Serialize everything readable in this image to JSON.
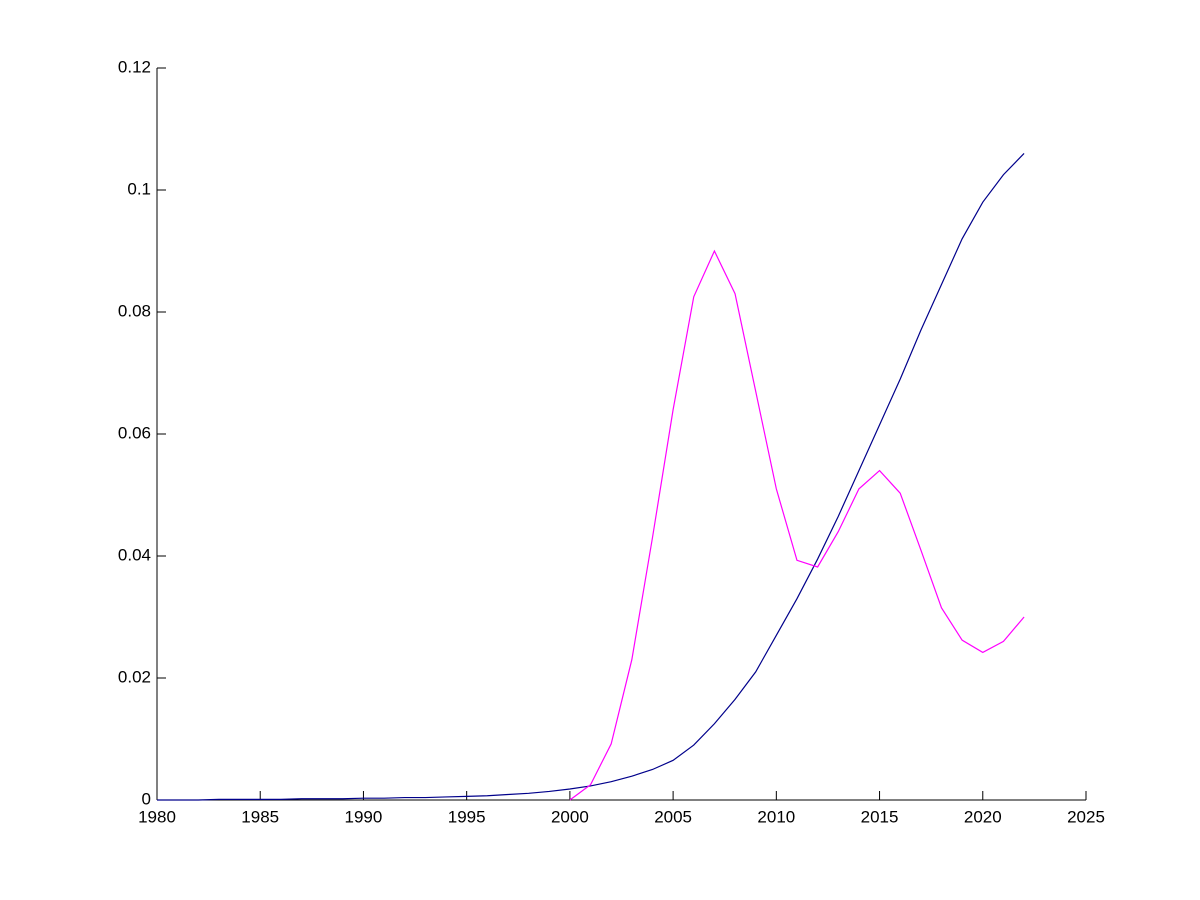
{
  "chart_data": {
    "type": "line",
    "x": [
      1980,
      1981,
      1982,
      1983,
      1984,
      1985,
      1986,
      1987,
      1988,
      1989,
      1990,
      1991,
      1992,
      1993,
      1994,
      1995,
      1996,
      1997,
      1998,
      1999,
      2000,
      2001,
      2002,
      2003,
      2004,
      2005,
      2006,
      2007,
      2008,
      2009,
      2010,
      2011,
      2012,
      2013,
      2014,
      2015,
      2016,
      2017,
      2018,
      2019,
      2020,
      2021,
      2022
    ],
    "series": [
      {
        "color": "#00008b",
        "values": [
          0,
          0,
          0,
          0.0001,
          0.0001,
          0.0001,
          0.0001,
          0.0002,
          0.0002,
          0.0002,
          0.0003,
          0.0003,
          0.0004,
          0.0004,
          0.0005,
          0.0006,
          0.0007,
          0.0009,
          0.0011,
          0.0014,
          0.0018,
          0.0023,
          0.003,
          0.0039,
          0.005,
          0.0065,
          0.009,
          0.0125,
          0.0165,
          0.021,
          0.027,
          0.033,
          0.0395,
          0.0465,
          0.054,
          0.0615,
          0.069,
          0.077,
          0.0845,
          0.092,
          0.098,
          0.1025,
          0.106
        ]
      },
      {
        "color": "#ff00ff",
        "values": [
          null,
          null,
          null,
          null,
          null,
          null,
          null,
          null,
          null,
          null,
          null,
          null,
          null,
          null,
          null,
          null,
          null,
          null,
          null,
          null,
          0,
          0.0025,
          0.0092,
          0.023,
          0.043,
          0.064,
          0.0825,
          0.09,
          0.083,
          0.067,
          0.051,
          0.0393,
          0.0382,
          0.044,
          0.051,
          0.054,
          0.0503,
          0.041,
          0.0315,
          0.0262,
          0.0242,
          0.026,
          0.03
        ]
      }
    ],
    "xlim": [
      1980,
      2025
    ],
    "xticks": [
      1980,
      1985,
      1990,
      1995,
      2000,
      2005,
      2010,
      2015,
      2020,
      2025
    ],
    "ylim": [
      0,
      0.12
    ],
    "yticks": [
      0,
      0.02,
      0.04,
      0.06,
      0.08,
      0.1,
      0.12
    ]
  }
}
